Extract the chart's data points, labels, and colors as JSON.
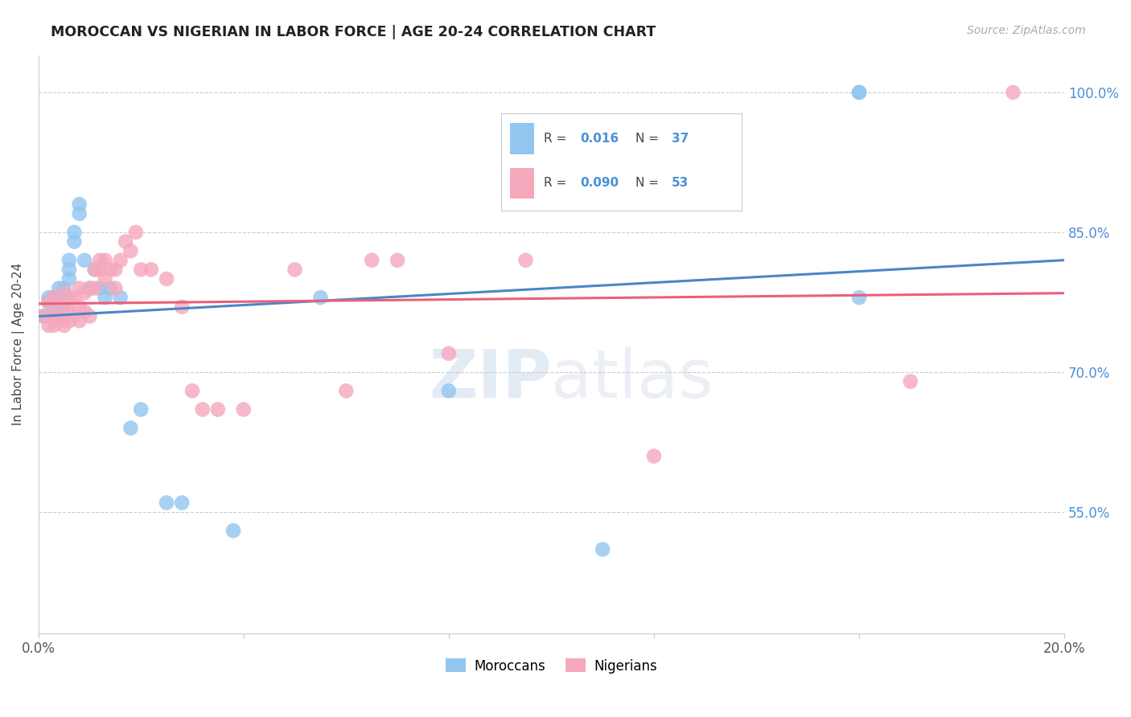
{
  "title": "MOROCCAN VS NIGERIAN IN LABOR FORCE | AGE 20-24 CORRELATION CHART",
  "source": "Source: ZipAtlas.com",
  "ylabel": "In Labor Force | Age 20-24",
  "yticks": [
    55.0,
    70.0,
    85.0,
    100.0
  ],
  "xlim": [
    0.0,
    0.2
  ],
  "ylim": [
    0.42,
    1.04
  ],
  "moroccan_color": "#92c5f0",
  "nigerian_color": "#f5a8bc",
  "moroccan_line_color": "#4a86c8",
  "nigerian_line_color": "#e8607a",
  "R_moroccan": "0.016",
  "N_moroccan": "37",
  "R_nigerian": "0.090",
  "N_nigerian": "53",
  "moroccan_x": [
    0.001,
    0.002,
    0.002,
    0.003,
    0.003,
    0.003,
    0.004,
    0.004,
    0.004,
    0.005,
    0.005,
    0.005,
    0.006,
    0.006,
    0.006,
    0.007,
    0.007,
    0.008,
    0.008,
    0.009,
    0.01,
    0.011,
    0.012,
    0.013,
    0.014,
    0.016,
    0.018,
    0.02,
    0.025,
    0.028,
    0.038,
    0.055,
    0.08,
    0.11,
    0.16,
    0.16,
    0.16
  ],
  "moroccan_y": [
    0.76,
    0.775,
    0.78,
    0.77,
    0.78,
    0.76,
    0.78,
    0.79,
    0.77,
    0.77,
    0.79,
    0.77,
    0.8,
    0.81,
    0.82,
    0.84,
    0.85,
    0.87,
    0.88,
    0.82,
    0.79,
    0.81,
    0.79,
    0.78,
    0.79,
    0.78,
    0.64,
    0.66,
    0.56,
    0.56,
    0.53,
    0.78,
    0.68,
    0.51,
    0.78,
    1.0,
    1.0
  ],
  "nigerian_x": [
    0.001,
    0.002,
    0.002,
    0.003,
    0.003,
    0.003,
    0.004,
    0.004,
    0.005,
    0.005,
    0.005,
    0.006,
    0.006,
    0.006,
    0.007,
    0.007,
    0.008,
    0.008,
    0.008,
    0.009,
    0.009,
    0.01,
    0.01,
    0.011,
    0.011,
    0.012,
    0.012,
    0.013,
    0.013,
    0.014,
    0.015,
    0.015,
    0.016,
    0.017,
    0.018,
    0.019,
    0.02,
    0.022,
    0.025,
    0.028,
    0.03,
    0.032,
    0.035,
    0.04,
    0.05,
    0.06,
    0.065,
    0.07,
    0.08,
    0.095,
    0.12,
    0.17,
    0.19
  ],
  "nigerian_y": [
    0.76,
    0.75,
    0.775,
    0.75,
    0.76,
    0.78,
    0.755,
    0.77,
    0.75,
    0.76,
    0.785,
    0.755,
    0.765,
    0.78,
    0.76,
    0.78,
    0.755,
    0.77,
    0.79,
    0.765,
    0.785,
    0.76,
    0.79,
    0.79,
    0.81,
    0.81,
    0.82,
    0.8,
    0.82,
    0.81,
    0.79,
    0.81,
    0.82,
    0.84,
    0.83,
    0.85,
    0.81,
    0.81,
    0.8,
    0.77,
    0.68,
    0.66,
    0.66,
    0.66,
    0.81,
    0.68,
    0.82,
    0.82,
    0.72,
    0.82,
    0.61,
    0.69,
    1.0
  ],
  "watermark_zip": "ZIP",
  "watermark_atlas": "atlas",
  "legend_moroccan_label": "Moroccans",
  "legend_nigerian_label": "Nigerians",
  "accent_color": "#4a90d9"
}
